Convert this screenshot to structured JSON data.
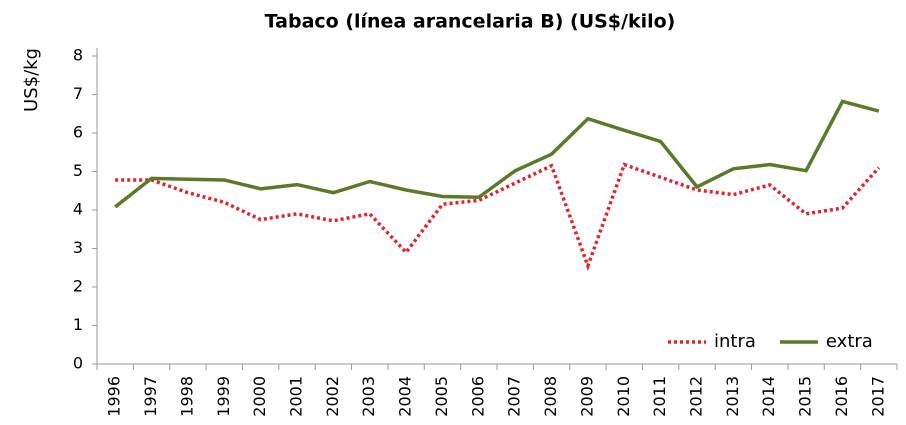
{
  "chart_data": {
    "type": "line",
    "title": "Tabaco (línea arancelaria B) (US$/kilo)",
    "y_label": "US$/kg",
    "categories": [
      "1996",
      "1997",
      "1998",
      "1999",
      "2000",
      "2001",
      "2002",
      "2003",
      "2004",
      "2005",
      "2006",
      "2007",
      "2008",
      "2009",
      "2010",
      "2011",
      "2012",
      "2013",
      "2014",
      "2015",
      "2016",
      "2017"
    ],
    "series": [
      {
        "name": "intra",
        "color": "#e3232c",
        "dash": true,
        "values": [
          4.78,
          4.78,
          4.45,
          4.2,
          3.75,
          3.9,
          3.72,
          3.9,
          2.9,
          4.15,
          4.25,
          4.7,
          5.15,
          2.55,
          5.18,
          4.85,
          4.52,
          4.4,
          4.65,
          3.9,
          4.05,
          5.1
        ]
      },
      {
        "name": "extra",
        "color": "#5a7a2a",
        "dash": false,
        "values": [
          4.08,
          4.82,
          4.8,
          4.78,
          4.55,
          4.66,
          4.45,
          4.74,
          4.52,
          4.35,
          4.33,
          5.02,
          5.45,
          6.37,
          6.07,
          5.78,
          4.6,
          5.07,
          5.18,
          5.02,
          6.82,
          6.57
        ]
      }
    ],
    "ylim": [
      0,
      8
    ],
    "yticks": [
      0,
      1,
      2,
      3,
      4,
      5,
      6,
      7,
      8
    ],
    "grid": false,
    "legend": "bottom-right"
  }
}
